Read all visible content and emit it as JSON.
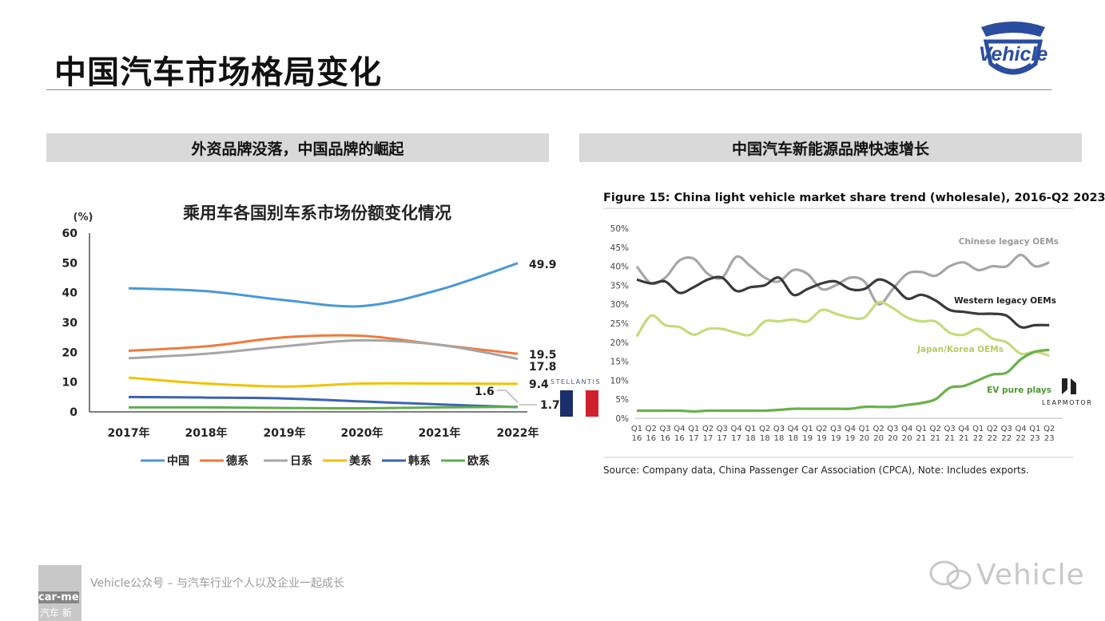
{
  "page": {
    "title": "中国汽车市场格局变化",
    "logo_text": "Vehicle",
    "footer_text": "Vehicle公众号 – 与汽车行业个人以及企业一起成长",
    "footer_thumb_text": "car-me",
    "footer_thumb_sub": "汽车 新",
    "watermark_text": "Vehicle"
  },
  "left_panel": {
    "header": "外资品牌没落，中国品牌的崛起"
  },
  "right_panel": {
    "header": "中国汽车新能源品牌快速增长",
    "source": "Source: Company data, China Passenger Car Association (CPCA), Note: Includes exports."
  },
  "brands": {
    "stellantis": "STELLANTIS",
    "leapmotor": "LEAPMOTOR",
    "flag_colors": [
      "#1b2f6b",
      "#ffffff",
      "#d0202e"
    ]
  },
  "chart_data": [
    {
      "type": "line",
      "title": "乘用车各国别车系市场份额变化情况",
      "ylabel": "(%)",
      "ylim": [
        0,
        60
      ],
      "yticks": [
        "0",
        "10",
        "20",
        "30",
        "40",
        "50",
        "60"
      ],
      "categories": [
        "2017年",
        "2018年",
        "2019年",
        "2020年",
        "2021年",
        "2022年"
      ],
      "legend_position": "bottom",
      "grid": false,
      "series": [
        {
          "name": "中国",
          "color": "#4a98d8",
          "values": [
            41.5,
            40.5,
            37.5,
            35.5,
            41,
            49.9
          ],
          "end_label": "49.9"
        },
        {
          "name": "德系",
          "color": "#ef7a3c",
          "values": [
            20.5,
            22,
            25,
            25.5,
            22.5,
            19.5
          ],
          "end_label": "19.5"
        },
        {
          "name": "日系",
          "color": "#a6a6a6",
          "values": [
            18,
            19.5,
            22,
            24,
            22.5,
            17.8
          ],
          "end_label": "17.8"
        },
        {
          "name": "美系",
          "color": "#f2c200",
          "values": [
            11.5,
            9.5,
            8.5,
            9.5,
            9.5,
            9.4
          ],
          "end_label": "9.4"
        },
        {
          "name": "韩系",
          "color": "#3a62b0",
          "values": [
            5,
            4.8,
            4.5,
            3.5,
            2.5,
            1.6
          ],
          "end_label": "1.6"
        },
        {
          "name": "欧系",
          "color": "#5fae4b",
          "values": [
            1.5,
            1.5,
            1.3,
            1.2,
            1.5,
            1.7
          ],
          "end_label": "1.7"
        }
      ]
    },
    {
      "type": "line",
      "title": "Figure 15: China light vehicle market share trend (wholesale), 2016-Q2 2023",
      "ylim": [
        0,
        50
      ],
      "yticks": [
        "0%",
        "5%",
        "10%",
        "15%",
        "20%",
        "25%",
        "30%",
        "35%",
        "40%",
        "45%",
        "50%"
      ],
      "x_top": [
        "Q1",
        "Q2",
        "Q3",
        "Q4",
        "Q1",
        "Q2",
        "Q3",
        "Q4",
        "Q1",
        "Q2",
        "Q3",
        "Q4",
        "Q1",
        "Q2",
        "Q3",
        "Q4",
        "Q1",
        "Q2",
        "Q3",
        "Q4",
        "Q1",
        "Q2",
        "Q3",
        "Q4",
        "Q1",
        "Q2",
        "Q3",
        "Q4",
        "Q1",
        "Q2"
      ],
      "x_bottom": [
        "16",
        "16",
        "16",
        "16",
        "17",
        "17",
        "17",
        "17",
        "18",
        "18",
        "18",
        "18",
        "19",
        "19",
        "19",
        "19",
        "20",
        "20",
        "20",
        "20",
        "21",
        "21",
        "21",
        "21",
        "22",
        "22",
        "22",
        "22",
        "23",
        "23"
      ],
      "grid": false,
      "series": [
        {
          "name": "Chinese legacy OEMs",
          "color": "#a6a6a6",
          "values": [
            40,
            35.5,
            37,
            41.5,
            42,
            38,
            37,
            42.5,
            40,
            37,
            36,
            39,
            38,
            34,
            35,
            37,
            36,
            30,
            34,
            38,
            38.5,
            37.5,
            40,
            41,
            39,
            40,
            40,
            43,
            40,
            41
          ]
        },
        {
          "name": "Western legacy OEMs",
          "color": "#3a3a3a",
          "values": [
            36.5,
            35.5,
            36,
            33,
            34.5,
            36.5,
            37,
            33.5,
            34.5,
            35,
            37,
            32.5,
            34,
            35.5,
            36,
            34,
            34,
            36.5,
            35,
            31.5,
            32.5,
            31,
            28.5,
            28,
            27.5,
            27.5,
            27,
            24,
            24.5,
            24.5
          ]
        },
        {
          "name": "Japan/Korea OEMs",
          "color": "#c4dc7a",
          "values": [
            21.5,
            27,
            24.5,
            24,
            22,
            23.5,
            23.5,
            22.5,
            22,
            25.5,
            25.5,
            26,
            25.5,
            28.5,
            27.5,
            26.5,
            26.5,
            30.5,
            29,
            26.5,
            25.5,
            25.5,
            22.5,
            22,
            23.5,
            21,
            20,
            17,
            17.5,
            16.5
          ]
        },
        {
          "name": "EV pure plays",
          "color": "#6ab04c",
          "values": [
            2,
            2,
            2,
            2,
            1.8,
            2,
            2,
            2,
            2,
            2,
            2.2,
            2.5,
            2.5,
            2.5,
            2.5,
            2.5,
            3,
            3,
            3,
            3.5,
            4,
            5,
            8,
            8.5,
            10,
            11.5,
            12,
            15.5,
            17.5,
            18
          ]
        }
      ]
    }
  ]
}
